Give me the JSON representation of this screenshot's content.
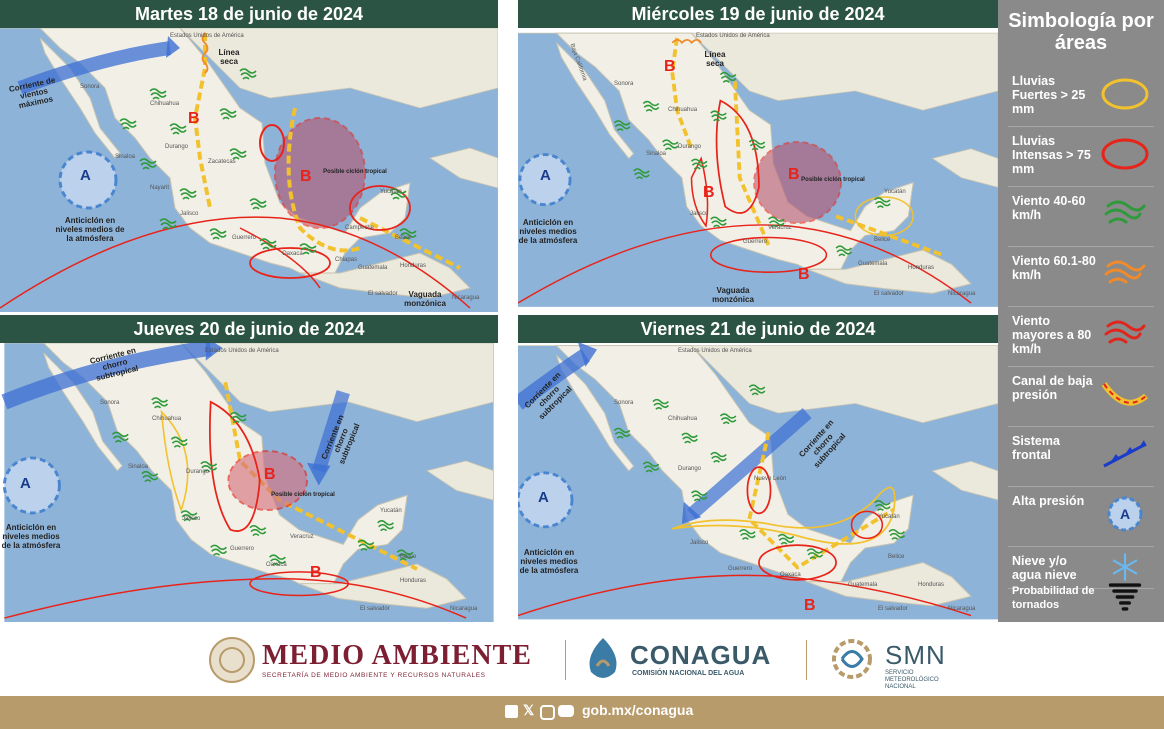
{
  "panels": [
    {
      "title": "Martes 18 de junio de 2024",
      "labels": {
        "usa": "Estados Unidos de América",
        "corriente": "Corriente de vientos máximos",
        "linea": "Línea seca",
        "anticiclon": "Anticiclón en niveles medios de la atmósfera",
        "ciclon": "Posible ciclón tropical",
        "vaguada": "Vaguada monzónica",
        "sonora": "Sonora",
        "chihuahua": "Chihuahua",
        "durango": "Durango",
        "sinaloa": "Sinaloa",
        "zacatecas": "Zacatecas",
        "jalisco": "Jalisco",
        "guerrero": "Guerrero",
        "oaxaca": "Oaxaca",
        "yucatan": "Yucatán",
        "campeche": "Campeche",
        "chiapas": "Chiapas",
        "guatemala": "Guatemala",
        "honduras": "Honduras",
        "belice": "Belice",
        "salvador": "El salvador",
        "nicaragua": "Nicaragua",
        "nayarit": "Nayarit"
      }
    },
    {
      "title": "Miércoles 19 de junio de 2024",
      "labels": {
        "usa": "Estados Unidos de América",
        "linea": "Línea seca",
        "anticiclon": "Anticiclón en niveles medios de la atmósfera",
        "ciclon": "Posible ciclón tropical",
        "vaguada": "Vaguada monzónica",
        "sonora": "Sonora",
        "chihuahua": "Chihuahua",
        "durango": "Durango",
        "sinaloa": "Sinaloa",
        "jalisco": "Jalisco",
        "guerrero": "Guerrero",
        "veracruz": "Veracruz",
        "yucatan": "Yucatán",
        "honduras": "Honduras",
        "guatemala": "Guatemala",
        "salvador": "El salvador",
        "nicaragua": "Nicaragua",
        "belice": "Belice",
        "baja": "Baja California"
      }
    },
    {
      "title": "Jueves 20 de junio de 2024",
      "labels": {
        "usa": "Estados Unidos de América",
        "corriente": "Corriente en chorro subtropical",
        "corriente2": "Corriente en chorro subtropical",
        "anticiclon": "Anticiclón en niveles medios de la atmósfera",
        "ciclon": "Posible ciclón tropical",
        "sonora": "Sonora",
        "chihuahua": "Chihuahua",
        "durango": "Durango",
        "sinaloa": "Sinaloa",
        "jalisco": "Jalisco",
        "guerrero": "Guerrero",
        "oaxaca": "Oaxaca",
        "yucatan": "Yucatán",
        "honduras": "Honduras",
        "nicaragua": "Nicaragua",
        "belice": "Belice",
        "veracruz": "Veracruz",
        "salvador": "El salvador"
      }
    },
    {
      "title": "Viernes 21 de junio de 2024",
      "labels": {
        "usa": "Estados Unidos de América",
        "corriente": "Corriente en chorro subtropical",
        "corriente2": "Corriente en chorro subtropical",
        "anticiclon": "Anticiclón en niveles medios de la atmósfera",
        "sonora": "Sonora",
        "chihuahua": "Chihuahua",
        "durango": "Durango",
        "jalisco": "Jalisco",
        "guerrero": "Guerrero",
        "oaxaca": "Oaxaca",
        "yucatan": "Yucatán",
        "honduras": "Honduras",
        "nicaragua": "Nicaragua",
        "belice": "Belice",
        "nuevoleon": "Nuevo León",
        "guatemala": "Guatemala",
        "salvador": "El salvador"
      }
    }
  ],
  "pressure_symbols": {
    "low": "B",
    "high": "A"
  },
  "legend": {
    "title": "Simbología por áreas",
    "items": [
      {
        "label": "Lluvias Fuertes > 25 mm",
        "icon": "yellow-ellipse-icon",
        "color": "#f2c12e"
      },
      {
        "label": "Lluvias Intensas > 75 mm",
        "icon": "red-ellipse-icon",
        "color": "#e8231a"
      },
      {
        "label": "Viento 40-60 km/h",
        "icon": "green-wind-icon",
        "color": "#2e9a3a"
      },
      {
        "label": "Viento 60.1-80 km/h",
        "icon": "orange-wind-icon",
        "color": "#f08a2a"
      },
      {
        "label": "Viento mayores a 80 km/h",
        "icon": "red-wind-icon",
        "color": "#e0261c"
      },
      {
        "label": "Canal de baja presión",
        "icon": "trough-line-icon",
        "color": "#f2c12e"
      },
      {
        "label": "Sistema frontal",
        "icon": "cold-front-icon",
        "color": "#1a3cc8"
      },
      {
        "label": "Alta presión",
        "icon": "high-pressure-icon",
        "color": "#4a86d0"
      },
      {
        "label": "Nieve y/o agua nieve",
        "icon": "snowflake-icon",
        "color": "#6ab8f0"
      },
      {
        "label": "Probabilidad de tornados",
        "icon": "tornado-icon",
        "color": "#111111"
      }
    ]
  },
  "footer": {
    "medio": "MEDIO AMBIENTE",
    "medio_sub": "SECRETARÍA DE MEDIO AMBIENTE Y RECURSOS NATURALES",
    "conagua": "CONAGUA",
    "conagua_sub": "COMISIÓN NACIONAL DEL AGUA",
    "smn": "SMN",
    "smn_sub": "SERVICIO METEOROLÓGICO NACIONAL",
    "url": "gob.mx/conagua",
    "colors": {
      "brand": "#7d1f33",
      "conagua": "#3a5a6a",
      "gold": "#b89b6a"
    }
  }
}
